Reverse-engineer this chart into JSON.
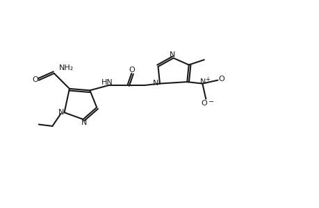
{
  "background_color": "#ffffff",
  "line_color": "#1a1a1a",
  "line_width": 1.5,
  "figsize": [
    4.6,
    3.0
  ],
  "dpi": 100,
  "xlim": [
    0,
    92
  ],
  "ylim": [
    0,
    60
  ]
}
